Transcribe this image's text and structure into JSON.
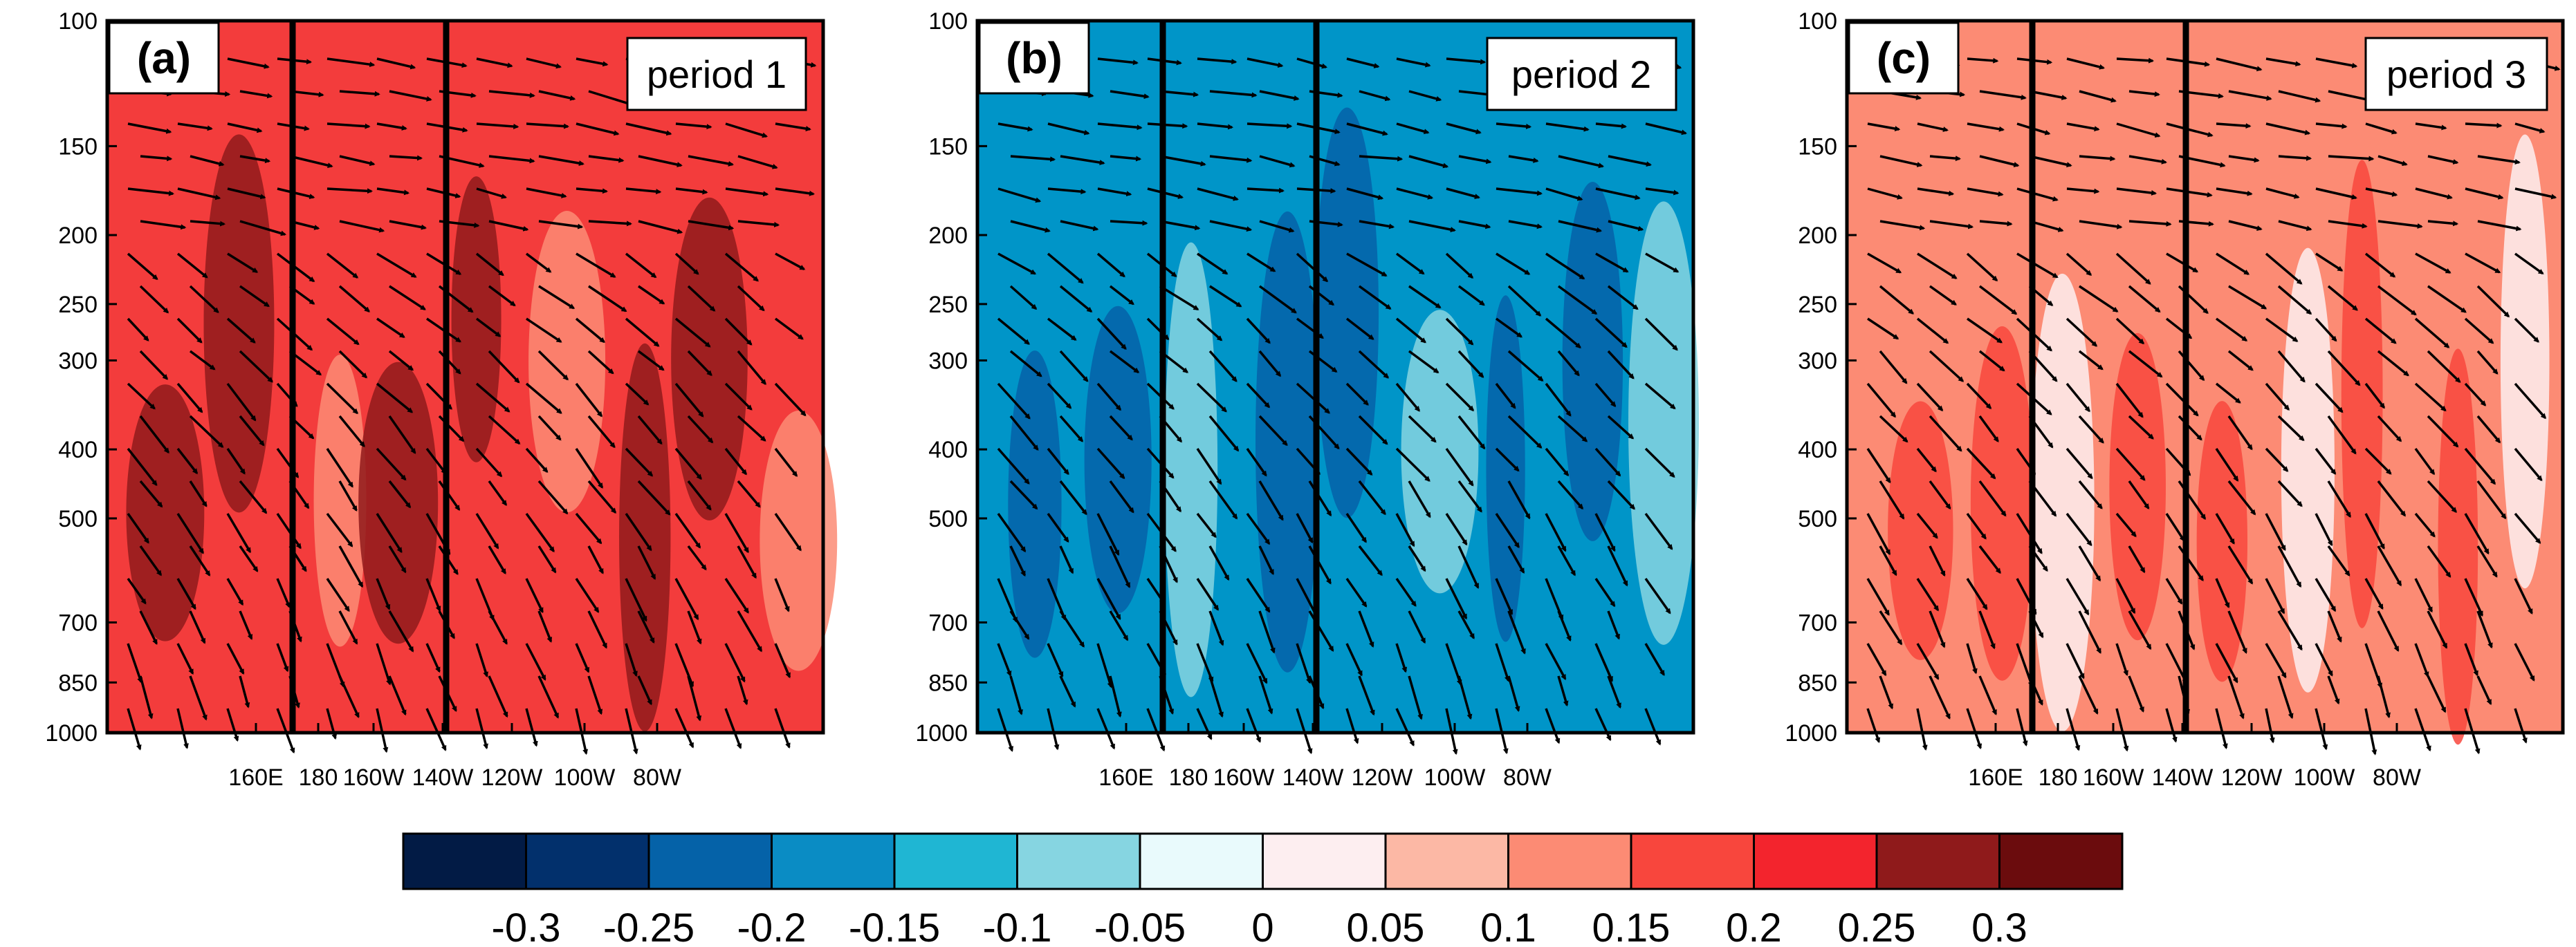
{
  "chart_data": [
    {
      "type": "heatmap",
      "panel_label": "(a)",
      "title": "period 1",
      "base_color": "#f33c3c",
      "ylabel": "",
      "xlabel": "",
      "y_axis": {
        "scale": "log",
        "inverted": true,
        "ylim": [
          100,
          1000
        ],
        "ticks": [
          100,
          150,
          200,
          250,
          300,
          400,
          500,
          700,
          850,
          1000
        ],
        "tick_labels": [
          "100",
          "150",
          "200",
          "250",
          "300",
          "400",
          "500",
          "700",
          "850",
          "1000"
        ]
      },
      "x_axis": {
        "ticks": [
          "160E",
          "180",
          "160W",
          "140W",
          "120W",
          "100W",
          "80W"
        ]
      },
      "boxes": [
        "180 to 147W"
      ],
      "vectors": "wind"
    },
    {
      "type": "heatmap",
      "panel_label": "(b)",
      "title": "period 2",
      "base_color": "#0095c8",
      "ylabel": "",
      "xlabel": "",
      "y_axis": {
        "scale": "log",
        "inverted": true,
        "ylim": [
          100,
          1000
        ],
        "ticks": [
          100,
          150,
          200,
          250,
          300,
          400,
          500,
          700,
          850,
          1000
        ],
        "tick_labels": [
          "100",
          "150",
          "200",
          "250",
          "300",
          "400",
          "500",
          "700",
          "850",
          "1000"
        ]
      },
      "x_axis": {
        "ticks": [
          "160E",
          "180",
          "160W",
          "140W",
          "120W",
          "100W",
          "80W"
        ]
      },
      "boxes": [
        "180 to 147W"
      ],
      "vectors": "wind"
    },
    {
      "type": "heatmap",
      "panel_label": "(c)",
      "title": "period 3",
      "base_color": "#fc8b74",
      "ylabel": "",
      "xlabel": "",
      "y_axis": {
        "scale": "log",
        "inverted": true,
        "ylim": [
          100,
          1000
        ],
        "ticks": [
          100,
          150,
          200,
          250,
          300,
          400,
          500,
          700,
          850,
          1000
        ],
        "tick_labels": [
          "100",
          "150",
          "200",
          "250",
          "300",
          "400",
          "500",
          "700",
          "850",
          "1000"
        ]
      },
      "x_axis": {
        "ticks": [
          "160E",
          "180",
          "160W",
          "140W",
          "120W",
          "100W",
          "80W"
        ]
      },
      "boxes": [
        "180 to 147W"
      ],
      "vectors": "wind"
    }
  ],
  "colorbar": {
    "colors": [
      "#021b45",
      "#02306c",
      "#0562a8",
      "#0a8cc4",
      "#1fb6d3",
      "#86d5e1",
      "#e9fafc",
      "#fdeef0",
      "#fcb8a5",
      "#fc8b74",
      "#f8463d",
      "#f3242d",
      "#8f1a1b",
      "#6b0c0d"
    ],
    "labels": [
      "-0.3",
      "-0.25",
      "-0.2",
      "-0.15",
      "-0.1",
      "-0.05",
      "0",
      "0.05",
      "0.1",
      "0.15",
      "0.2",
      "0.25",
      "0.3"
    ]
  }
}
